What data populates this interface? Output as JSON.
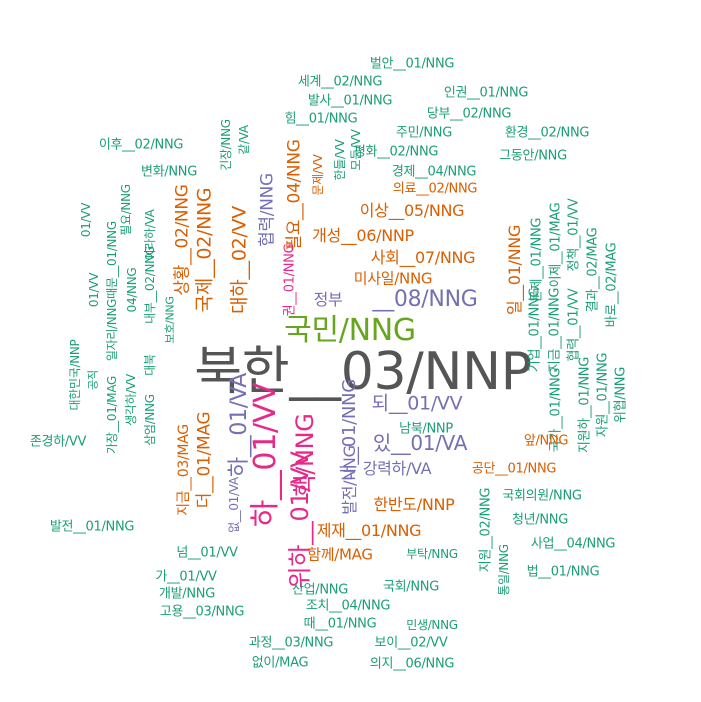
{
  "colors": {
    "teal": "#1b9e77",
    "orange": "#d95f02",
    "purple": "#7570b3",
    "magenta": "#e7298a",
    "green": "#66a61e",
    "gray": "#555555"
  },
  "words": [
    {
      "text": "북한__03/NNP",
      "color": "gray"
    },
    {
      "text": "국민/NNG",
      "color": "green"
    },
    {
      "text": "__08/NNG",
      "color": "purple"
    },
    {
      "text": "하__01/VV",
      "color": "magenta"
    },
    {
      "text": "위하__01/VV",
      "color": "magenta"
    },
    {
      "text": "하__01/VA",
      "color": "purple"
    },
    {
      "text": "핵/NNG",
      "color": "magenta"
    },
    {
      "text": "대하__02/VV",
      "color": "orange"
    },
    {
      "text": "국제__02/NNG",
      "color": "orange"
    },
    {
      "text": "상황__02/NNG",
      "color": "orange"
    },
    {
      "text": "협력/NNG",
      "color": "purple"
    },
    {
      "text": "필요__04/NNG",
      "color": "orange"
    },
    {
      "text": "이상__05/NNG",
      "color": "orange"
    },
    {
      "text": "개성__06/NNP",
      "color": "orange"
    },
    {
      "text": "사회__07/NNG",
      "color": "orange"
    },
    {
      "text": "미사일/NNG",
      "color": "orange"
    },
    {
      "text": "되__01/VV",
      "color": "purple"
    },
    {
      "text": "있__01/VA",
      "color": "purple"
    },
    {
      "text": "강력하/VA",
      "color": "purple"
    },
    {
      "text": "내__01/NNG",
      "color": "purple"
    },
    {
      "text": "발전/NNG",
      "color": "purple"
    },
    {
      "text": "한반도/NNP",
      "color": "orange"
    },
    {
      "text": "제재__01/NNG",
      "color": "orange"
    },
    {
      "text": "함께/MAG",
      "color": "orange"
    },
    {
      "text": "더__01/MAG",
      "color": "orange"
    },
    {
      "text": "지금__03/MAG",
      "color": "orange"
    },
    {
      "text": "없__01/VA",
      "color": "purple"
    },
    {
      "text": "정부",
      "color": "purple"
    },
    {
      "text": "권__01/NNG",
      "color": "magenta"
    },
    {
      "text": "일__01/NNG",
      "color": "orange"
    },
    {
      "text": "벌안__01/NNG",
      "color": "teal"
    },
    {
      "text": "세계__02/NNG",
      "color": "teal"
    },
    {
      "text": "발사__01/NNG",
      "color": "teal"
    },
    {
      "text": "인권__01/NNG",
      "color": "teal"
    },
    {
      "text": "힘__01/NNG",
      "color": "teal"
    },
    {
      "text": "당부__02/NNG",
      "color": "teal"
    },
    {
      "text": "주민/NNG",
      "color": "teal"
    },
    {
      "text": "환경__02/NNG",
      "color": "teal"
    },
    {
      "text": "이후__02/NNG",
      "color": "teal"
    },
    {
      "text": "평화__02/NNG",
      "color": "teal"
    },
    {
      "text": "그동안/NNG",
      "color": "teal"
    },
    {
      "text": "변화/NNG",
      "color": "teal"
    },
    {
      "text": "경제__04/NNG",
      "color": "teal"
    },
    {
      "text": "의료__02/NNG",
      "color": "orange"
    },
    {
      "text": "문제/VV",
      "color": "orange"
    },
    {
      "text": "한들/VV",
      "color": "teal"
    },
    {
      "text": "긴장/NNG",
      "color": "teal"
    },
    {
      "text": "같/VA",
      "color": "teal"
    },
    {
      "text": "이라하/VA",
      "color": "teal"
    },
    {
      "text": "모든/VV",
      "color": "teal"
    },
    {
      "text": "01/VV",
      "color": "teal"
    },
    {
      "text": "필요/NNG",
      "color": "teal"
    },
    {
      "text": "이제__01/MAG",
      "color": "teal"
    },
    {
      "text": "정책__01/VV",
      "color": "teal"
    },
    {
      "text": "문제__01/NNG",
      "color": "teal"
    },
    {
      "text": "지금__01/NNG",
      "color": "teal"
    },
    {
      "text": "결과__02/MAG",
      "color": "teal"
    },
    {
      "text": "바로__02/MAG",
      "color": "teal"
    },
    {
      "text": "기업__01/NNG",
      "color": "teal"
    },
    {
      "text": "협력__01/VV",
      "color": "teal"
    },
    {
      "text": "국가__01/NNG",
      "color": "teal"
    },
    {
      "text": "지원하__01/NNG",
      "color": "teal"
    },
    {
      "text": "자원__01/NNG",
      "color": "teal"
    },
    {
      "text": "위협/NNG",
      "color": "teal"
    },
    {
      "text": "국회의원/NNG",
      "color": "teal"
    },
    {
      "text": "청년/NNG",
      "color": "teal"
    },
    {
      "text": "사업__04/NNG",
      "color": "teal"
    },
    {
      "text": "지원__02/NNG",
      "color": "teal"
    },
    {
      "text": "통일/NNG",
      "color": "teal"
    },
    {
      "text": "법__01/NNG",
      "color": "teal"
    },
    {
      "text": "존경하/VV",
      "color": "teal"
    },
    {
      "text": "가장__01/MAG",
      "color": "teal"
    },
    {
      "text": "생각하/VV",
      "color": "teal"
    },
    {
      "text": "삼엄/NNG",
      "color": "teal"
    },
    {
      "text": "대한민국/NNP",
      "color": "teal"
    },
    {
      "text": "공직",
      "color": "teal"
    },
    {
      "text": "일자리/NNG",
      "color": "teal"
    },
    {
      "text": "대북",
      "color": "teal"
    },
    {
      "text": "보호/NNG",
      "color": "teal"
    },
    {
      "text": "내부__02/NNG",
      "color": "teal"
    },
    {
      "text": "04/NNG",
      "color": "teal"
    },
    {
      "text": "01/VV",
      "color": "teal"
    },
    {
      "text": "때문__01/NNG",
      "color": "teal"
    },
    {
      "text": "남북/NNP",
      "color": "teal"
    },
    {
      "text": "앞/NNG",
      "color": "orange"
    },
    {
      "text": "공단__01/NNG",
      "color": "orange"
    },
    {
      "text": "발전__01/NNG",
      "color": "teal"
    },
    {
      "text": "넘__01/VV",
      "color": "teal"
    },
    {
      "text": "부탁/NNG",
      "color": "teal"
    },
    {
      "text": "가__01/VV",
      "color": "teal"
    },
    {
      "text": "개발/NNG",
      "color": "teal"
    },
    {
      "text": "산업/NNG",
      "color": "teal"
    },
    {
      "text": "국회/NNG",
      "color": "teal"
    },
    {
      "text": "고용__03/NNG",
      "color": "teal"
    },
    {
      "text": "조치__04/NNG",
      "color": "teal"
    },
    {
      "text": "때__01/NNG",
      "color": "teal"
    },
    {
      "text": "민생/NNG",
      "color": "teal"
    },
    {
      "text": "과정__03/NNG",
      "color": "teal"
    },
    {
      "text": "보이__02/VV",
      "color": "teal"
    },
    {
      "text": "없이/MAG",
      "color": "teal"
    },
    {
      "text": "의지__06/NNG",
      "color": "teal"
    }
  ]
}
